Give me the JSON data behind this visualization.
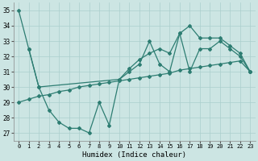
{
  "xlabel": "Humidex (Indice chaleur)",
  "xlim": [
    -0.5,
    23.5
  ],
  "ylim": [
    26.5,
    35.5
  ],
  "yticks": [
    27,
    28,
    29,
    30,
    31,
    32,
    33,
    34,
    35
  ],
  "xticks": [
    0,
    1,
    2,
    3,
    4,
    5,
    6,
    7,
    8,
    9,
    10,
    11,
    12,
    13,
    14,
    15,
    16,
    17,
    18,
    19,
    20,
    21,
    22,
    23
  ],
  "bg_color": "#cce5e3",
  "grid_color": "#aacfcd",
  "line_color": "#2d7d72",
  "line1_x": [
    0,
    1,
    2,
    3,
    4,
    5,
    6,
    7,
    8,
    9,
    10,
    11,
    12,
    13,
    14,
    15,
    16,
    17,
    18,
    19,
    20,
    21,
    22,
    23
  ],
  "line1_y": [
    35.0,
    32.5,
    30.0,
    28.5,
    27.7,
    27.3,
    27.3,
    27.0,
    29.0,
    27.5,
    30.5,
    31.0,
    31.5,
    33.0,
    31.5,
    31.0,
    33.5,
    31.0,
    32.5,
    32.5,
    33.0,
    32.5,
    32.0,
    31.0
  ],
  "line2_x": [
    0,
    1,
    2,
    3,
    4,
    5,
    6,
    7,
    8,
    9,
    10,
    11,
    12,
    13,
    14,
    15,
    16,
    17,
    18,
    19,
    20,
    21,
    22,
    23
  ],
  "line2_y": [
    29.0,
    29.2,
    29.4,
    29.5,
    29.7,
    29.8,
    30.0,
    30.1,
    30.2,
    30.3,
    30.4,
    30.5,
    30.6,
    30.7,
    30.8,
    30.9,
    31.1,
    31.2,
    31.3,
    31.4,
    31.5,
    31.6,
    31.7,
    31.0
  ],
  "line3_x": [
    1,
    2,
    10,
    11,
    12,
    13,
    14,
    15,
    16,
    17,
    18,
    19,
    20,
    21,
    22,
    23
  ],
  "line3_y": [
    32.5,
    30.0,
    30.5,
    31.2,
    31.8,
    32.2,
    32.5,
    32.2,
    33.5,
    34.0,
    33.2,
    33.2,
    33.2,
    32.7,
    32.2,
    31.0
  ]
}
